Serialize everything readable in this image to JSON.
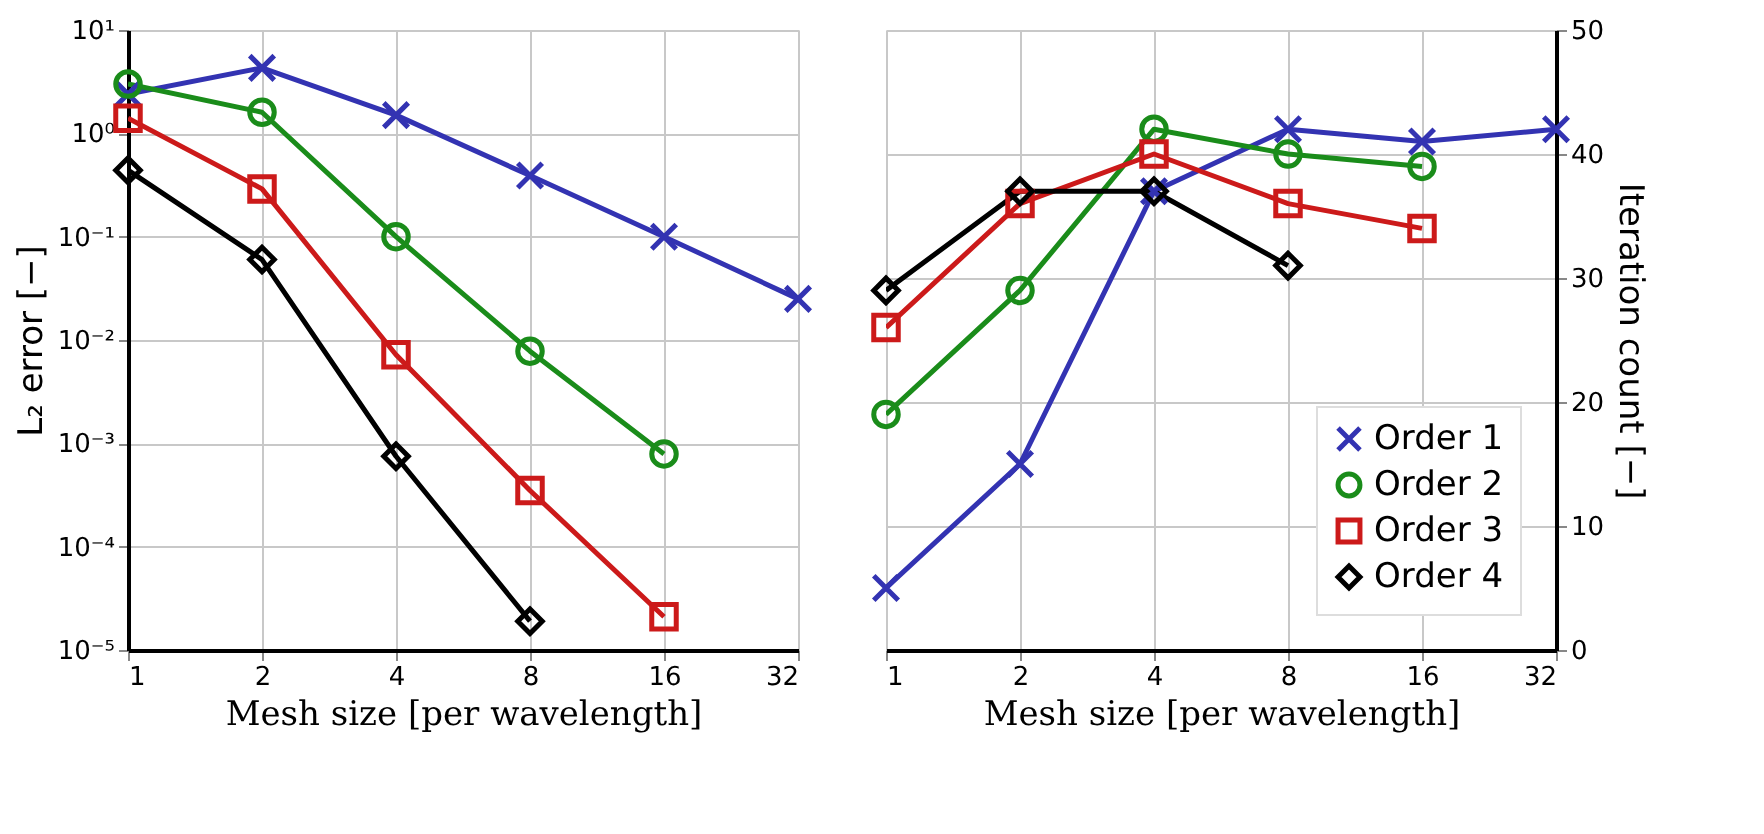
{
  "chart_data": [
    {
      "type": "line",
      "xlabel": "Mesh size [per wavelength]",
      "ylabel": "L₂ error [−]",
      "log": "xy",
      "grid": true,
      "legend": false,
      "xlim": [
        1,
        32
      ],
      "xticks": [
        1,
        2,
        4,
        8,
        16,
        32
      ],
      "ylim": [
        1e-05,
        10
      ],
      "yticks": [
        {
          "value": 1e-05,
          "label": "10⁻⁵"
        },
        {
          "value": 0.0001,
          "label": "10⁻⁴"
        },
        {
          "value": 0.001,
          "label": "10⁻³"
        },
        {
          "value": 0.01,
          "label": "10⁻²"
        },
        {
          "value": 0.1,
          "label": "10⁻¹"
        },
        {
          "value": 1,
          "label": "10⁰"
        },
        {
          "value": 10,
          "label": "10¹"
        }
      ],
      "series": [
        {
          "color": "#3333b2",
          "marker": "cross",
          "x": [
            1,
            2,
            4,
            8,
            16,
            32
          ],
          "values": [
            2.4,
            4.3,
            1.5,
            0.39,
            0.1,
            0.025
          ]
        },
        {
          "color": "#1a8c1a",
          "marker": "circle",
          "x": [
            1,
            2,
            4,
            8,
            16
          ],
          "values": [
            3.0,
            1.6,
            0.1,
            0.0078,
            0.00079
          ]
        },
        {
          "color": "#cc1a1a",
          "marker": "square",
          "x": [
            1,
            2,
            4,
            8,
            16
          ],
          "values": [
            1.4,
            0.29,
            0.0072,
            0.00035,
            2.1e-05
          ]
        },
        {
          "color": "#000000",
          "marker": "diamond",
          "x": [
            1,
            2,
            4,
            8
          ],
          "values": [
            0.44,
            0.06,
            0.00075,
            1.9e-05
          ]
        }
      ]
    },
    {
      "type": "line",
      "xlabel": "Mesh size [per wavelength]",
      "ylabel": "Iteration count [−]",
      "log": "x",
      "grid": true,
      "legend": "bottom right",
      "xlim": [
        1,
        32
      ],
      "xticks": [
        1,
        2,
        4,
        8,
        16,
        32
      ],
      "ylim": [
        0,
        50
      ],
      "yticks": [
        0,
        10,
        20,
        30,
        40,
        50
      ],
      "series": [
        {
          "name": "Order 1",
          "color": "#3333b2",
          "marker": "cross",
          "x": [
            1,
            2,
            4,
            8,
            16,
            32
          ],
          "values": [
            5,
            15,
            37,
            42,
            41,
            42
          ]
        },
        {
          "name": "Order 2",
          "color": "#1a8c1a",
          "marker": "circle",
          "x": [
            1,
            2,
            4,
            8,
            16
          ],
          "values": [
            19,
            29,
            42,
            40,
            39
          ]
        },
        {
          "name": "Order 3",
          "color": "#cc1a1a",
          "marker": "square",
          "x": [
            1,
            2,
            4,
            8,
            16
          ],
          "values": [
            26,
            36,
            40,
            36,
            34
          ]
        },
        {
          "name": "Order 4",
          "color": "#000000",
          "marker": "diamond",
          "x": [
            1,
            2,
            4,
            8
          ],
          "values": [
            29,
            37,
            37,
            31
          ]
        }
      ]
    }
  ]
}
